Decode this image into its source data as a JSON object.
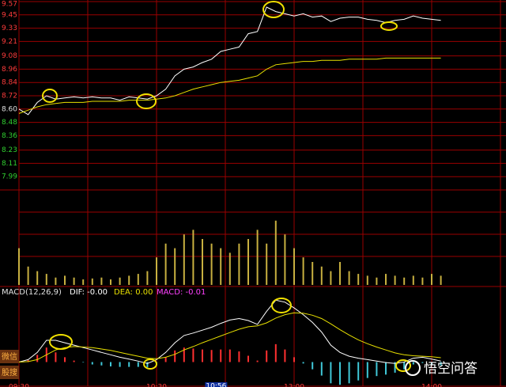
{
  "chart_data": [
    {
      "type": "line",
      "x": [
        0,
        4,
        8,
        12,
        16,
        20,
        24,
        28,
        32,
        36,
        40,
        44,
        48,
        52,
        56,
        60,
        64,
        68,
        72,
        76,
        80,
        84,
        88,
        92,
        96,
        100,
        104,
        108,
        112,
        116,
        120,
        124,
        128,
        132,
        136,
        140,
        144,
        148,
        152,
        156,
        160,
        164,
        168,
        172,
        176,
        180,
        184
      ],
      "series": [
        {
          "color": "#ffffff",
          "values": [
            8.6,
            8.55,
            8.66,
            8.72,
            8.69,
            8.7,
            8.71,
            8.7,
            8.71,
            8.7,
            8.7,
            8.68,
            8.71,
            8.7,
            8.69,
            8.72,
            8.78,
            8.9,
            8.96,
            8.98,
            9.02,
            9.05,
            9.12,
            9.14,
            9.16,
            9.28,
            9.3,
            9.52,
            9.48,
            9.46,
            9.44,
            9.46,
            9.43,
            9.44,
            9.39,
            9.42,
            9.43,
            9.43,
            9.41,
            9.4,
            9.38,
            9.4,
            9.41,
            9.44,
            9.42,
            9.41,
            9.4
          ]
        },
        {
          "color": "#e8e000",
          "values": [
            8.56,
            8.59,
            8.62,
            8.64,
            8.65,
            8.66,
            8.66,
            8.66,
            8.67,
            8.67,
            8.67,
            8.67,
            8.68,
            8.68,
            8.68,
            8.69,
            8.7,
            8.72,
            8.75,
            8.78,
            8.8,
            8.82,
            8.84,
            8.85,
            8.86,
            8.88,
            8.9,
            8.96,
            9.0,
            9.01,
            9.02,
            9.03,
            9.03,
            9.04,
            9.04,
            9.04,
            9.05,
            9.05,
            9.05,
            9.05,
            9.06,
            9.06,
            9.06,
            9.06,
            9.06,
            9.06,
            9.06
          ]
        }
      ],
      "ylim": [
        7.87,
        9.57
      ],
      "yticks": [
        9.57,
        9.45,
        9.33,
        9.21,
        9.08,
        8.96,
        8.84,
        8.72,
        {
          "value": 8.6,
          "label": "8.60"
        },
        8.48,
        8.36,
        8.23,
        8.11,
        7.99
      ],
      "ytick_colors": [
        "#ff3c3c",
        "#ff3c3c",
        "#ff3c3c",
        "#ff3c3c",
        "#ff3c3c",
        "#ff3c3c",
        "#ff3c3c",
        "#ff3c3c",
        "#e0e0e0",
        "#30d030",
        "#30d030",
        "#30d030",
        "#30d030",
        "#30d030"
      ],
      "xlim": [
        0,
        240
      ],
      "xticks": [
        {
          "value": 0,
          "label": "09:30"
        },
        {
          "value": 60,
          "label": "10:30"
        },
        {
          "value": 120,
          "label": "13:00"
        },
        {
          "value": 180,
          "label": "14:00"
        }
      ],
      "cursor": {
        "value": 86,
        "label": "10:56"
      },
      "grid": true
    },
    {
      "type": "bar",
      "x": [
        0,
        4,
        8,
        12,
        16,
        20,
        24,
        28,
        32,
        36,
        40,
        44,
        48,
        52,
        56,
        60,
        64,
        68,
        72,
        76,
        80,
        84,
        88,
        92,
        96,
        100,
        104,
        108,
        112,
        116,
        120,
        124,
        128,
        132,
        136,
        140,
        144,
        148,
        152,
        156,
        160,
        164,
        168,
        172,
        176,
        180,
        184
      ],
      "values": [
        40,
        20,
        15,
        12,
        8,
        10,
        8,
        6,
        7,
        8,
        6,
        8,
        10,
        12,
        15,
        30,
        45,
        40,
        55,
        60,
        50,
        45,
        40,
        35,
        45,
        50,
        60,
        45,
        70,
        55,
        40,
        30,
        25,
        20,
        15,
        25,
        15,
        12,
        10,
        8,
        12,
        10,
        8,
        10,
        8,
        12,
        10
      ],
      "color": "#c8b040",
      "ylim": [
        0,
        100
      ],
      "xlim": [
        0,
        240
      ]
    },
    {
      "type": "macd",
      "title": "MACD(12,26,9)",
      "x": [
        0,
        4,
        8,
        12,
        16,
        20,
        24,
        28,
        32,
        36,
        40,
        44,
        48,
        52,
        56,
        60,
        64,
        68,
        72,
        76,
        80,
        84,
        88,
        92,
        96,
        100,
        104,
        108,
        112,
        116,
        120,
        124,
        128,
        132,
        136,
        140,
        144,
        148,
        152,
        156,
        160,
        164,
        168,
        172,
        176,
        180,
        184
      ],
      "series": [
        {
          "name": "DIF: -0.00",
          "color": "#ffffff",
          "values": [
            0,
            0.005,
            0.02,
            0.045,
            0.045,
            0.04,
            0.035,
            0.03,
            0.025,
            0.02,
            0.015,
            0.01,
            0.006,
            0.002,
            -0.003,
            0.005,
            0.02,
            0.04,
            0.055,
            0.06,
            0.066,
            0.072,
            0.08,
            0.087,
            0.09,
            0.086,
            0.078,
            0.105,
            0.128,
            0.124,
            0.112,
            0.098,
            0.082,
            0.062,
            0.035,
            0.02,
            0.012,
            0.008,
            0.005,
            0.002,
            -0.001,
            -0.003,
            0,
            0.008,
            0.01,
            0.006,
            0.002
          ]
        },
        {
          "name": "DEA: 0.00",
          "color": "#e8e000",
          "values": [
            0,
            0.001,
            0.005,
            0.015,
            0.025,
            0.03,
            0.032,
            0.031,
            0.03,
            0.027,
            0.024,
            0.02,
            0.016,
            0.012,
            0.008,
            0.007,
            0.01,
            0.016,
            0.025,
            0.032,
            0.04,
            0.047,
            0.054,
            0.061,
            0.068,
            0.073,
            0.075,
            0.081,
            0.091,
            0.098,
            0.102,
            0.101,
            0.097,
            0.09,
            0.079,
            0.067,
            0.056,
            0.046,
            0.038,
            0.031,
            0.025,
            0.019,
            0.015,
            0.013,
            0.012,
            0.011,
            0.009
          ]
        }
      ],
      "histogram": {
        "name": "MACD: -0.01",
        "color": "#ff40ff",
        "up_color": "#ff3030",
        "down_color": "#40c8d8",
        "values": [
          0,
          0.004,
          0.015,
          0.03,
          0.02,
          0.01,
          0.003,
          -0.001,
          -0.005,
          -0.007,
          -0.009,
          -0.01,
          -0.01,
          -0.01,
          -0.011,
          -0.002,
          0.01,
          0.024,
          0.03,
          0.028,
          0.026,
          0.025,
          0.026,
          0.026,
          0.022,
          0.013,
          0.003,
          0.024,
          0.037,
          0.026,
          0.01,
          -0.003,
          -0.015,
          -0.028,
          -0.044,
          -0.047,
          -0.044,
          -0.038,
          -0.033,
          -0.029,
          -0.026,
          -0.022,
          -0.015,
          -0.005,
          -0.002,
          -0.005,
          -0.007
        ]
      },
      "ylim": [
        -0.05,
        0.14
      ],
      "xlim": [
        0,
        240
      ]
    }
  ],
  "buttons": [
    "微信",
    "股搜"
  ],
  "watermark": "悟空问答"
}
